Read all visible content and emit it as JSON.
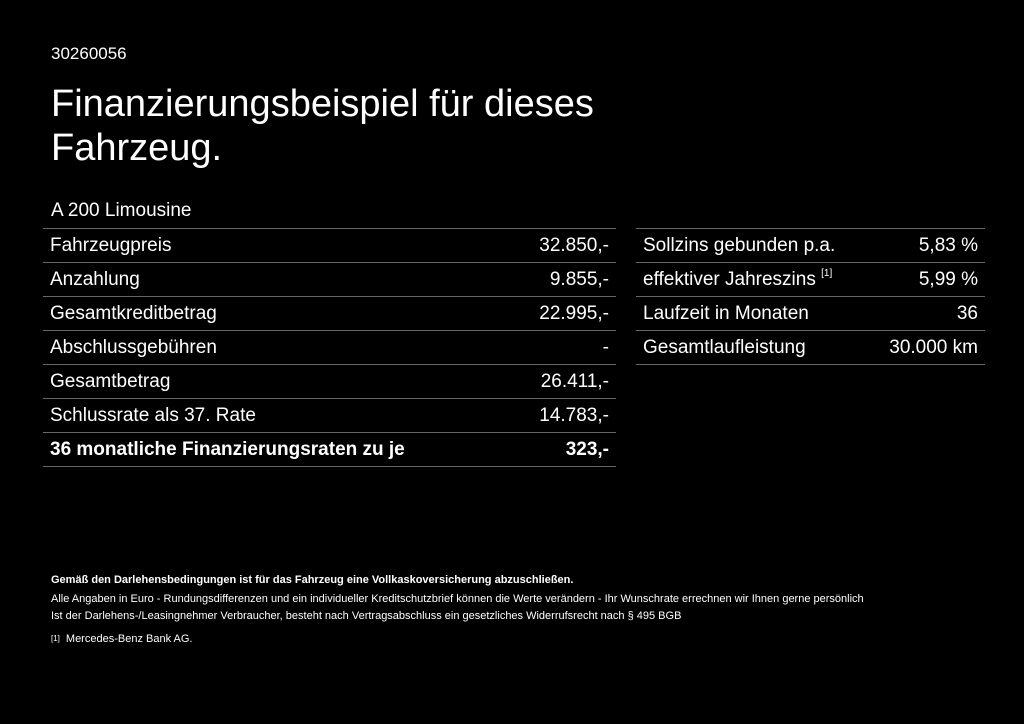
{
  "header": {
    "code": "30260056",
    "title": "Finanzierungsbeispiel für dieses Fahrzeug.",
    "model": "A 200 Limousine"
  },
  "left_table": [
    {
      "label": "Fahrzeugpreis",
      "value": "32.850,-"
    },
    {
      "label": "Anzahlung",
      "value": "9.855,-"
    },
    {
      "label": "Gesamtkreditbetrag",
      "value": "22.995,-"
    },
    {
      "label": "Abschlussgebühren",
      "value": "-"
    },
    {
      "label": "Gesamtbetrag",
      "value": "26.411,-"
    },
    {
      "label": "Schlussrate als 37. Rate",
      "value": "14.783,-"
    },
    {
      "label": "36 monatliche Finanzierungsraten zu je",
      "value": "323,-"
    }
  ],
  "right_table": [
    {
      "label": "Sollzins gebunden p.a.",
      "value": "5,83 %"
    },
    {
      "label": "effektiver Jahreszins",
      "sup": "[1]",
      "value": "5,99 %"
    },
    {
      "label": "Laufzeit in Monaten",
      "value": "36"
    },
    {
      "label": "Gesamtlaufleistung",
      "value": "30.000 km"
    }
  ],
  "notes": {
    "bold": "Gemäß den Darlehensbedingungen ist für das Fahrzeug eine Vollkaskoversicherung abzuschließen.",
    "line1": "Alle Angaben in Euro - Rundungsdifferenzen und ein individueller Kreditschutzbrief können die Werte verändern - Ihr Wunschrate errechnen wir Ihnen gerne persönlich",
    "line2": "Ist der Darlehens-/Leasingnehmer Verbraucher, besteht nach Vertragsabschluss ein gesetzliches Widerrufsrecht nach § 495 BGB",
    "footnote_mark": "[1]",
    "footnote": "Mercedes-Benz Bank AG."
  }
}
